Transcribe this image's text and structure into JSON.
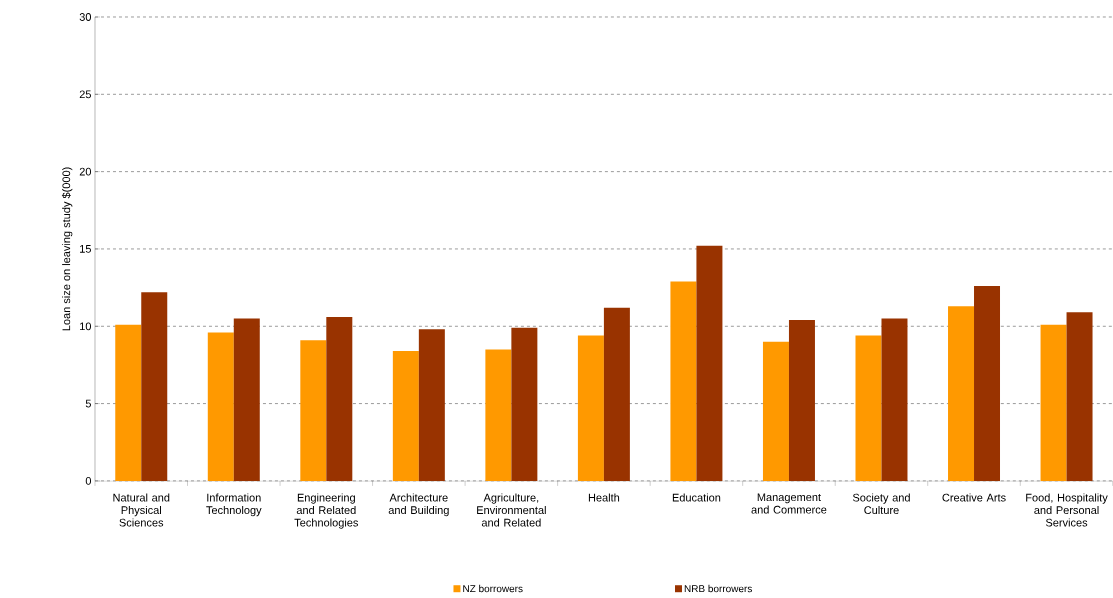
{
  "chart_data": {
    "type": "bar",
    "ylabel": "Loan size on leaving study $(000)",
    "categories": [
      "Natural and Physical Sciences",
      "Information Technology",
      "Engineering and Related Technologies",
      "Architecture and Building",
      "Agriculture, Environmental and Related",
      "Health",
      "Education",
      "Management and Commerce",
      "Society and Culture",
      "Creative Arts",
      "Food, Hospitality and Personal Services"
    ],
    "series": [
      {
        "name": "NZ borrowers",
        "color": "#ff9900",
        "values": [
          10.1,
          9.6,
          9.1,
          8.4,
          8.5,
          9.4,
          12.9,
          9.0,
          9.4,
          11.3,
          10.1
        ]
      },
      {
        "name": "NRB borrowers",
        "color": "#993300",
        "values": [
          12.2,
          10.5,
          10.6,
          9.8,
          9.9,
          11.2,
          15.2,
          10.4,
          10.5,
          12.6,
          10.9
        ]
      }
    ],
    "ylim": [
      0,
      30
    ],
    "yticks": [
      0,
      5,
      10,
      15,
      20,
      25,
      30
    ],
    "grid": "y",
    "legend": "bottom"
  }
}
